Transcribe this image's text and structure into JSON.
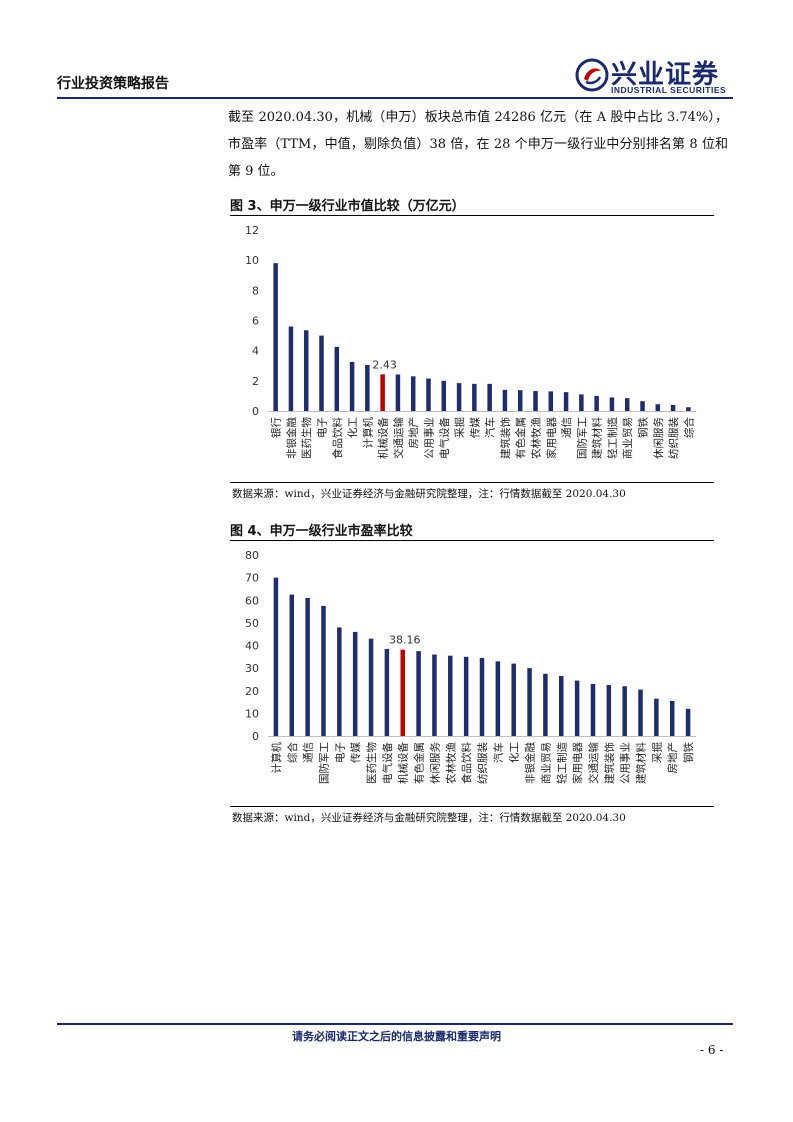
{
  "header": {
    "report_type": "行业投资策略报告",
    "logo_cn": "兴业证券",
    "logo_en": "INDUSTRIAL SECURITIES"
  },
  "paragraph": "截至 2020.04.30，机械（申万）板块总市值 24286 亿元（在 A 股中占比 3.74%），市盈率（TTM，中值，剔除负值）38 倍，在 28 个申万一级行业中分别排名第 8 位和第 9 位。",
  "figures": [
    {
      "title": "图 3、申万一级行业市值比较（万亿元）",
      "source": "数据来源：wind，兴业证券经济与金融研究院整理，注：行情数据截至 2020.04.30"
    },
    {
      "title": "图 4、申万一级行业市盈率比较",
      "source": "数据来源：wind，兴业证券经济与金融研究院整理，注：行情数据截至 2020.04.30"
    }
  ],
  "chart_data": [
    {
      "type": "bar",
      "title": "图 3、申万一级行业市值比较（万亿元）",
      "categories": [
        "银行",
        "非银金融",
        "医药生物",
        "电子",
        "食品饮料",
        "化工",
        "计算机",
        "机械设备",
        "交通运输",
        "房地产",
        "公用事业",
        "电气设备",
        "采掘",
        "传媒",
        "汽车",
        "建筑装饰",
        "有色金属",
        "农林牧渔",
        "家用电器",
        "通信",
        "国防军工",
        "建筑材料",
        "轻工制造",
        "商业贸易",
        "钢铁",
        "休闲服务",
        "纺织服装",
        "综合"
      ],
      "values": [
        9.8,
        5.6,
        5.35,
        5.0,
        4.25,
        3.25,
        3.05,
        2.43,
        2.42,
        2.3,
        2.15,
        2.0,
        1.85,
        1.8,
        1.8,
        1.4,
        1.38,
        1.32,
        1.3,
        1.25,
        1.1,
        1.0,
        0.9,
        0.85,
        0.65,
        0.45,
        0.4,
        0.25
      ],
      "highlight_index": 7,
      "annotation": "2.43",
      "yticks": [
        "0",
        "2",
        "4",
        "6",
        "8",
        "10",
        "12"
      ],
      "ylim": [
        0,
        12
      ],
      "bar_color": "#1f2d6e",
      "highlight_color": "#c00000"
    },
    {
      "type": "bar",
      "title": "图 4、申万一级行业市盈率比较",
      "categories": [
        "计算机",
        "综合",
        "通信",
        "国防军工",
        "电子",
        "传媒",
        "医药生物",
        "电气设备",
        "机械设备",
        "有色金属",
        "休闲服务",
        "农林牧渔",
        "食品饮料",
        "纺织服装",
        "汽车",
        "化工",
        "非银金融",
        "商业贸易",
        "轻工制造",
        "家用电器",
        "交通运输",
        "建筑装饰",
        "公用事业",
        "建筑材料",
        "采掘",
        "房地产",
        "钢铁"
      ],
      "values": [
        70,
        62.5,
        61,
        57.5,
        48,
        46,
        43,
        38.5,
        38.16,
        37.5,
        36,
        35.5,
        35,
        34.5,
        33,
        32,
        30,
        27.5,
        26.5,
        24.5,
        23,
        22.5,
        22,
        20.5,
        16.5,
        15.5,
        12
      ],
      "highlight_index": 8,
      "annotation": "38.16",
      "yticks": [
        "0",
        "10",
        "20",
        "30",
        "40",
        "50",
        "60",
        "70",
        "80"
      ],
      "ylim": [
        0,
        80
      ],
      "bar_color": "#1f2d6e",
      "highlight_color": "#c00000"
    }
  ],
  "footer": {
    "notice": "请务必阅读正文之后的信息披露和重要声明",
    "page": "- 6 -"
  }
}
